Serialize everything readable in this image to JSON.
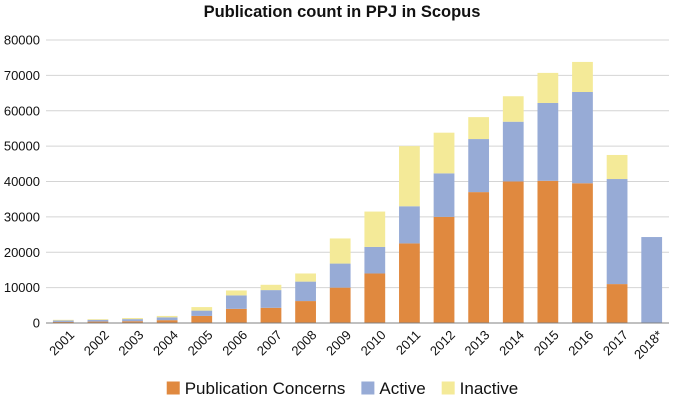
{
  "chart_data": {
    "type": "bar",
    "stacked": true,
    "title": "Publication count in PPJ in Scopus",
    "xlabel": "",
    "ylabel": "",
    "ylim": [
      0,
      80000
    ],
    "yticks": [
      "0",
      "10000",
      "20000",
      "30000",
      "40000",
      "50000",
      "60000",
      "70000",
      "80000"
    ],
    "grid": true,
    "legend_position": "bottom",
    "categories": [
      "2001",
      "2002",
      "2003",
      "2004",
      "2005",
      "2006",
      "2007",
      "2008",
      "2009",
      "2010",
      "2011",
      "2012",
      "2013",
      "2014",
      "2015",
      "2016",
      "2017",
      "2018*"
    ],
    "series": [
      {
        "name": "Publication Concerns",
        "color": "#e0893f",
        "values": [
          300,
          400,
          500,
          800,
          2000,
          4000,
          4300,
          6200,
          10000,
          14000,
          22500,
          30000,
          37000,
          40000,
          40200,
          39500,
          11000,
          0
        ]
      },
      {
        "name": "Active",
        "color": "#97abd6",
        "values": [
          400,
          500,
          600,
          800,
          1500,
          3800,
          5000,
          5500,
          6800,
          7500,
          10500,
          12300,
          15000,
          16900,
          22000,
          25800,
          29700,
          24300
        ]
      },
      {
        "name": "Inactive",
        "color": "#f4ea98",
        "values": [
          200,
          200,
          300,
          400,
          1000,
          1400,
          1500,
          2300,
          7100,
          10000,
          17000,
          11500,
          6200,
          7200,
          8500,
          8500,
          6800,
          0
        ]
      }
    ]
  }
}
